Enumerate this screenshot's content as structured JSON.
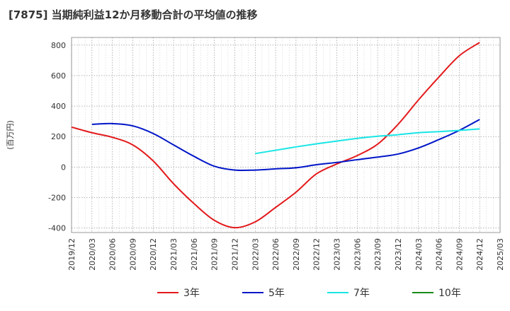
{
  "chart_data": {
    "type": "line",
    "title": "[7875]  当期純利益12か月移動合計の平均値の推移",
    "ylabel": "(百万円)",
    "xlabel": "",
    "ylim": [
      -430,
      850
    ],
    "yticks": [
      -400,
      -200,
      0,
      200,
      400,
      600,
      800
    ],
    "x_ticks": [
      "2019/12",
      "2020/03",
      "2020/06",
      "2020/09",
      "2020/12",
      "2021/03",
      "2021/06",
      "2021/09",
      "2021/12",
      "2022/03",
      "2022/06",
      "2022/09",
      "2022/12",
      "2023/03",
      "2023/06",
      "2023/09",
      "2023/12",
      "2024/03",
      "2024/06",
      "2024/09",
      "2024/12",
      "2025/03"
    ],
    "grid": true,
    "legend_position": "bottom",
    "series": [
      {
        "name": "3年",
        "color": "#e31a1c",
        "x": [
          "2019/12",
          "2020/03",
          "2020/06",
          "2020/09",
          "2020/12",
          "2021/03",
          "2021/06",
          "2021/09",
          "2021/12",
          "2022/03",
          "2022/06",
          "2022/09",
          "2022/12",
          "2023/03",
          "2023/06",
          "2023/09",
          "2023/12",
          "2024/03",
          "2024/06",
          "2024/09",
          "2024/12"
        ],
        "values": [
          262,
          225,
          195,
          145,
          40,
          -110,
          -240,
          -350,
          -398,
          -360,
          -265,
          -165,
          -45,
          20,
          75,
          150,
          280,
          440,
          590,
          730,
          817
        ]
      },
      {
        "name": "5年",
        "color": "#0015c8",
        "x": [
          "2020/03",
          "2020/06",
          "2020/09",
          "2020/12",
          "2021/03",
          "2021/06",
          "2021/09",
          "2021/12",
          "2022/03",
          "2022/06",
          "2022/09",
          "2022/12",
          "2023/03",
          "2023/06",
          "2023/09",
          "2023/12",
          "2024/03",
          "2024/06",
          "2024/09",
          "2024/12"
        ],
        "values": [
          280,
          285,
          270,
          220,
          145,
          70,
          5,
          -20,
          -20,
          -12,
          -5,
          15,
          30,
          48,
          65,
          85,
          125,
          180,
          240,
          312
        ]
      },
      {
        "name": "7年",
        "color": "#19e5e5",
        "x": [
          "2022/03",
          "2022/06",
          "2022/09",
          "2022/12",
          "2023/03",
          "2023/06",
          "2023/09",
          "2023/12",
          "2024/03",
          "2024/06",
          "2024/09",
          "2024/12"
        ],
        "values": [
          88,
          110,
          132,
          152,
          170,
          188,
          202,
          212,
          225,
          232,
          240,
          250
        ]
      },
      {
        "name": "10年",
        "color": "#1a8a1a",
        "x": [],
        "values": []
      }
    ]
  }
}
